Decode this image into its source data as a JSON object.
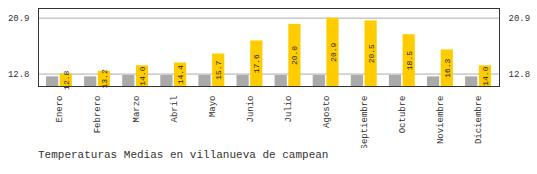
{
  "chart_data": {
    "type": "bar",
    "title": "Temperaturas Medias en villanueva de campean",
    "categories": [
      "Enero",
      "Febrero",
      "Marzo",
      "Abril",
      "Mayo",
      "Junio",
      "Julio",
      "Agosto",
      "Septiembre",
      "Octubre",
      "Noviembre",
      "Diciembre"
    ],
    "series": [
      {
        "color": "#AAAAAA",
        "values": [
          12.4,
          12.4,
          12.6,
          12.6,
          12.6,
          12.6,
          12.6,
          12.6,
          12.6,
          12.6,
          12.4,
          12.4
        ]
      },
      {
        "color": "#FFCC00",
        "values": [
          12.8,
          13.2,
          14.0,
          14.4,
          15.7,
          17.6,
          20.0,
          20.9,
          20.5,
          18.5,
          16.3,
          14.0
        ],
        "value_labels": [
          "12.8",
          "13.2",
          "14.0",
          "14.4",
          "15.7",
          "17.6",
          "20.0",
          "20.9",
          "20.5",
          "18.5",
          "16.3",
          "14.0"
        ],
        "data_labels": true
      }
    ],
    "ylim": [
      11.0,
      22.3
    ],
    "yticks": [
      12.8,
      20.9
    ],
    "grid": true
  }
}
